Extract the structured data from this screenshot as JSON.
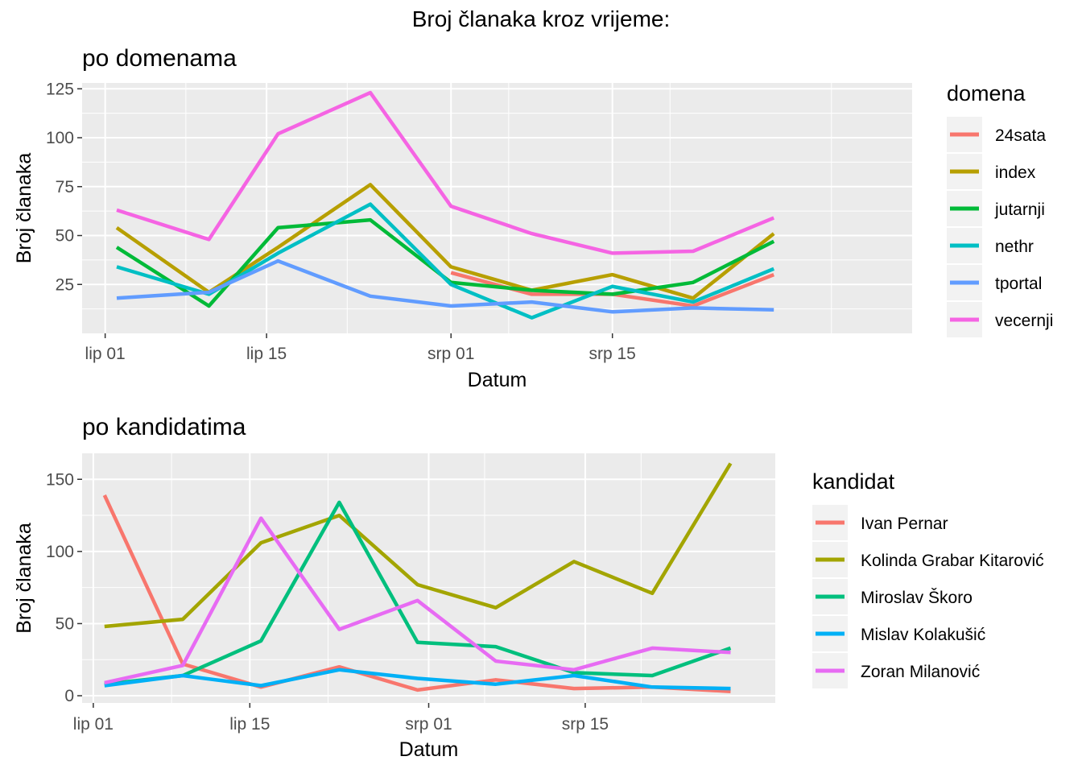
{
  "title": "Broj članaka kroz vrijeme:",
  "colors": {
    "panel_bg": "#EBEBEB",
    "grid": "#FFFFFF",
    "legend_key_bg": "#F2F2F2",
    "tick_text": "#4D4D4D"
  },
  "chart_data": [
    {
      "type": "line",
      "title": "po domenama",
      "xlabel": "Datum",
      "ylabel": "Broj članaka",
      "x_type": "date",
      "xlim": [
        "2019-05-30",
        "2019-08-10"
      ],
      "ylim": [
        0,
        128
      ],
      "x_ticks": [
        {
          "date": "2019-06-01",
          "label": "lip 01"
        },
        {
          "date": "2019-06-15",
          "label": "lip 15"
        },
        {
          "date": "2019-07-01",
          "label": "srp 01"
        },
        {
          "date": "2019-07-15",
          "label": "srp 15"
        }
      ],
      "y_ticks": [
        25,
        50,
        75,
        100,
        125
      ],
      "x": [
        "2019-06-02",
        "2019-06-10",
        "2019-06-16",
        "2019-06-24",
        "2019-07-01",
        "2019-07-08",
        "2019-07-15",
        "2019-07-22",
        "2019-07-29"
      ],
      "legend_title": "domena",
      "legend_position": "right",
      "grid": true,
      "series": [
        {
          "name": "24sata",
          "color": "#F8766D",
          "values": [
            null,
            null,
            null,
            null,
            31,
            20,
            20,
            14,
            30
          ]
        },
        {
          "name": "index",
          "color": "#B79F00",
          "values": [
            54,
            21,
            44,
            76,
            34,
            22,
            30,
            18,
            51
          ]
        },
        {
          "name": "jutarnji",
          "color": "#00BA38",
          "values": [
            44,
            14,
            54,
            58,
            26,
            22,
            20,
            26,
            47
          ]
        },
        {
          "name": "nethr",
          "color": "#00BFC4",
          "values": [
            34,
            20,
            41,
            66,
            25,
            8,
            24,
            16,
            33
          ]
        },
        {
          "name": "tportal",
          "color": "#619CFF",
          "values": [
            18,
            21,
            37,
            19,
            14,
            16,
            11,
            13,
            12
          ]
        },
        {
          "name": "vecernji",
          "color": "#F564E3",
          "values": [
            63,
            48,
            102,
            123,
            65,
            51,
            41,
            42,
            59
          ]
        }
      ]
    },
    {
      "type": "line",
      "title": "po kandidatima",
      "xlabel": "Datum",
      "ylabel": "Broj članaka",
      "x_type": "date",
      "xlim": [
        "2019-05-31",
        "2019-08-01"
      ],
      "ylim": [
        -5,
        168
      ],
      "x_ticks": [
        {
          "date": "2019-06-01",
          "label": "lip 01"
        },
        {
          "date": "2019-06-15",
          "label": "lip 15"
        },
        {
          "date": "2019-07-01",
          "label": "srp 01"
        },
        {
          "date": "2019-07-15",
          "label": "srp 15"
        }
      ],
      "y_ticks": [
        0,
        50,
        100,
        150
      ],
      "x": [
        "2019-06-02",
        "2019-06-09",
        "2019-06-16",
        "2019-06-23",
        "2019-06-30",
        "2019-07-07",
        "2019-07-14",
        "2019-07-21",
        "2019-07-28"
      ],
      "legend_title": "kandidat",
      "legend_position": "right",
      "grid": true,
      "series": [
        {
          "name": "Ivan Pernar",
          "color": "#F8766D",
          "values": [
            139,
            22,
            6,
            20,
            4,
            11,
            5,
            6,
            3
          ]
        },
        {
          "name": "Kolinda Grabar Kitarović",
          "color": "#A3A500",
          "values": [
            48,
            53,
            106,
            125,
            77,
            61,
            93,
            71,
            161
          ]
        },
        {
          "name": "Miroslav Škoro",
          "color": "#00BF7D",
          "values": [
            8,
            14,
            38,
            134,
            37,
            34,
            16,
            14,
            33
          ]
        },
        {
          "name": "Mislav Kolakušić",
          "color": "#00B0F6",
          "values": [
            7,
            14,
            7,
            18,
            12,
            8,
            14,
            6,
            5
          ]
        },
        {
          "name": "Zoran Milanović",
          "color": "#E76BF3",
          "values": [
            9,
            21,
            123,
            46,
            66,
            24,
            18,
            33,
            30
          ]
        }
      ]
    }
  ]
}
